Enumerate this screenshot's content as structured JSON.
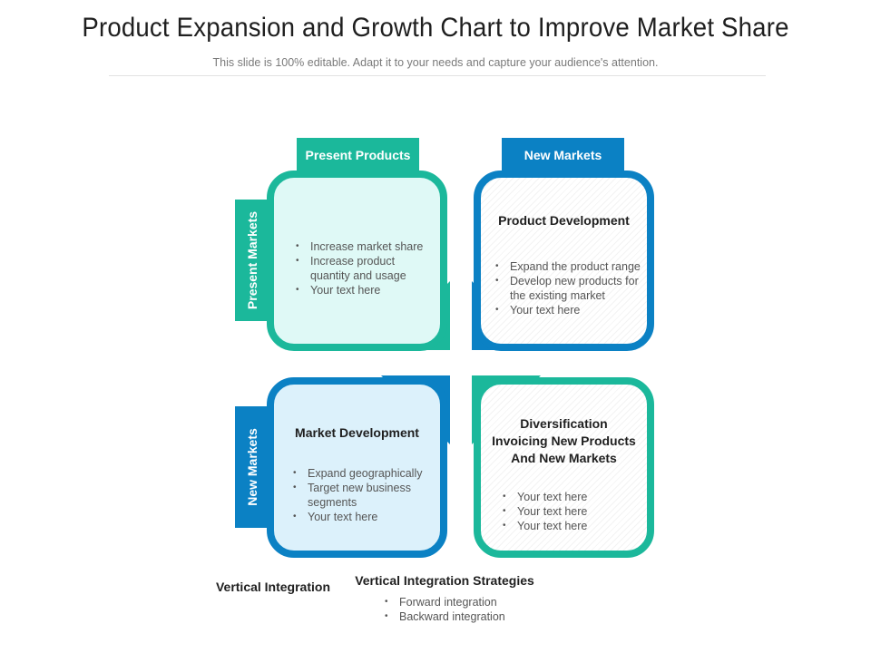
{
  "header": {
    "title": "Product Expansion and Growth Chart to Improve Market Share",
    "subtitle": "This slide is 100% editable. Adapt it to your needs and capture your audience's attention."
  },
  "axes": {
    "top_left": "Present Products",
    "top_right": "New Markets",
    "left_top": "Present Markets",
    "left_bottom": "New Markets"
  },
  "quadrants": {
    "q1": {
      "items": [
        "Increase market share",
        "Increase product quantity and usage",
        "Your text here"
      ]
    },
    "q2": {
      "heading": "Product Development",
      "items": [
        "Expand the product range",
        "Develop new products for the existing market",
        "Your text here"
      ]
    },
    "q3": {
      "heading": "Market Development",
      "items": [
        "Expand geographically",
        "Target new business segments",
        "Your text here"
      ]
    },
    "q4": {
      "heading": "Diversification Invoicing New Products And New Markets",
      "items": [
        "Your text here",
        "Your text here",
        "Your text here"
      ]
    }
  },
  "footer": {
    "vertical_integration": "Vertical Integration",
    "strategies_heading": "Vertical Integration Strategies",
    "items": [
      "Forward integration",
      "Backward integration"
    ]
  },
  "colors": {
    "teal": "#1bb89b",
    "blue": "#0b81c4"
  }
}
